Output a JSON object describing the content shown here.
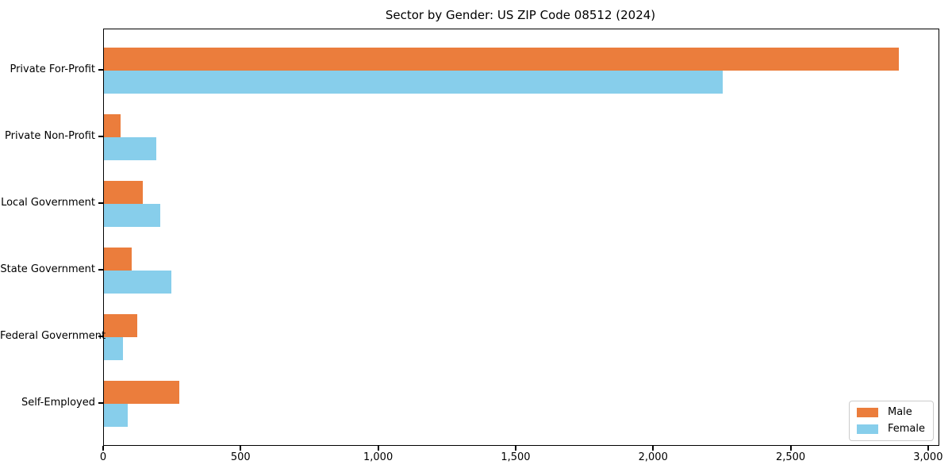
{
  "chart_data": {
    "type": "bar",
    "orientation": "horizontal",
    "title": "Sector by Gender: US ZIP Code 08512 (2024)",
    "categories": [
      "Private For-Profit",
      "Private Non-Profit",
      "Local Government",
      "State Government",
      "Federal Government",
      "Self-Employed"
    ],
    "series": [
      {
        "name": "Male",
        "color": "#EB7D3C",
        "values": [
          2890,
          60,
          140,
          100,
          120,
          275
        ]
      },
      {
        "name": "Female",
        "color": "#87CEEB",
        "values": [
          2250,
          190,
          205,
          245,
          70,
          85
        ]
      }
    ],
    "xlabel": "",
    "ylabel": "",
    "xlim": [
      0,
      3035
    ],
    "xticks": {
      "values": [
        0,
        500,
        1000,
        1500,
        2000,
        2500,
        3000
      ],
      "labels": [
        "0",
        "500",
        "1,000",
        "1,500",
        "2,000",
        "2,500",
        "3,000"
      ]
    },
    "grid": false,
    "legend": {
      "position": "lower right"
    }
  }
}
